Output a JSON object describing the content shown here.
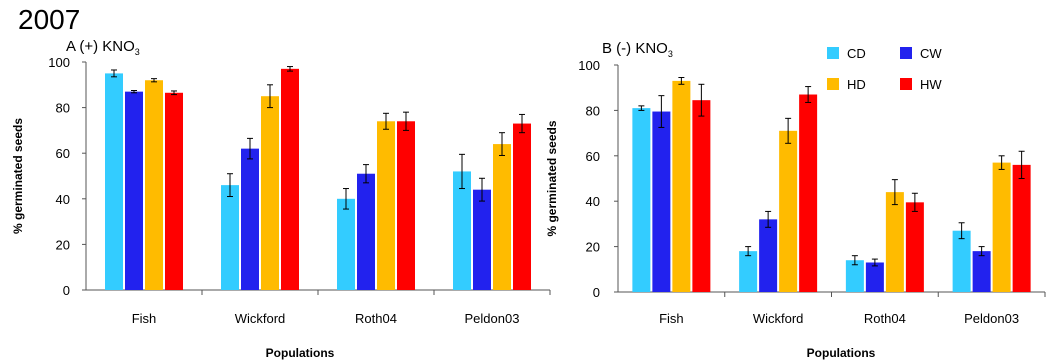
{
  "year_label": "2007",
  "chart_data": [
    {
      "type": "bar",
      "title": "A (+) KNO3",
      "title_main": "A (+) KNO",
      "title_sub": "3",
      "xlabel": "Populations",
      "ylabel": "% germinated seeds",
      "ylim": [
        0,
        100
      ],
      "yticks": [
        "0",
        "20",
        "40",
        "60",
        "80",
        "100"
      ],
      "categories": [
        "Fish",
        "Wickford",
        "Roth04",
        "Peldon03"
      ],
      "series": [
        {
          "name": "CD",
          "color": "#33ccff",
          "values": [
            95,
            46,
            40,
            52
          ],
          "errors": [
            1.5,
            5,
            4.5,
            7.5
          ]
        },
        {
          "name": "CW",
          "color": "#2222ee",
          "values": [
            87,
            62,
            51,
            44
          ],
          "errors": [
            0.5,
            4.5,
            4,
            5
          ]
        },
        {
          "name": "HD",
          "color": "#ffbb00",
          "values": [
            92,
            85,
            74,
            64
          ],
          "errors": [
            0.7,
            5,
            3.5,
            5
          ]
        },
        {
          "name": "HW",
          "color": "#ff0000",
          "values": [
            86.5,
            97,
            74,
            73
          ],
          "errors": [
            0.8,
            1,
            4,
            4
          ]
        }
      ],
      "legend": "none"
    },
    {
      "type": "bar",
      "title": "B (-) KNO3",
      "title_main": "B (-) KNO",
      "title_sub": "3",
      "xlabel": "Populations",
      "ylabel": "% germinated seeds",
      "ylim": [
        0,
        100
      ],
      "yticks": [
        "0",
        "20",
        "40",
        "60",
        "80",
        "100"
      ],
      "categories": [
        "Fish",
        "Wickford",
        "Roth04",
        "Peldon03"
      ],
      "series": [
        {
          "name": "CD",
          "color": "#33ccff",
          "values": [
            81,
            18,
            14,
            27
          ],
          "errors": [
            1,
            2,
            2,
            3.5
          ]
        },
        {
          "name": "CW",
          "color": "#2222ee",
          "values": [
            79.5,
            32,
            13,
            18
          ],
          "errors": [
            7,
            3.5,
            1.5,
            2
          ]
        },
        {
          "name": "HD",
          "color": "#ffbb00",
          "values": [
            93,
            71,
            44,
            57
          ],
          "errors": [
            1.5,
            5.5,
            5.5,
            3
          ]
        },
        {
          "name": "HW",
          "color": "#ff0000",
          "values": [
            84.5,
            87,
            39.5,
            56
          ],
          "errors": [
            7,
            3.5,
            4,
            6
          ]
        }
      ],
      "legend": "top-right"
    }
  ]
}
